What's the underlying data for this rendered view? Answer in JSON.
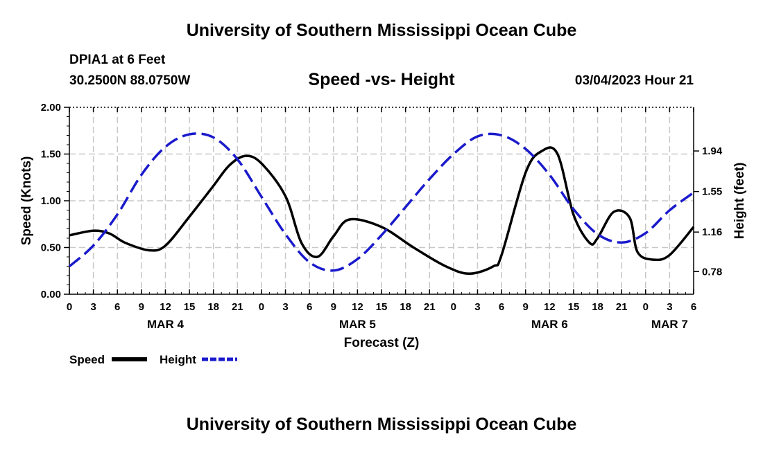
{
  "header": {
    "title": "University of Southern Mississippi Ocean Cube",
    "station": "DPIA1 at 6 Feet",
    "coords": "30.2500N  88.0750W",
    "subtitle": "Speed -vs- Height",
    "datetime": "03/04/2023 Hour 21"
  },
  "footer": {
    "title": "University of Southern Mississippi Ocean Cube"
  },
  "chart_data": {
    "type": "line",
    "title": "Speed -vs- Height",
    "xlabel": "Forecast (Z)",
    "ylabel": "Speed (Knots)",
    "y2label": "Height (feet)",
    "xlim": [
      0,
      78
    ],
    "ylim": [
      0,
      2.0
    ],
    "y2lim": [
      0.562,
      2.36
    ],
    "grid": true,
    "legend_position": "bottom-left",
    "x_tick_labels": [
      "0",
      "3",
      "6",
      "9",
      "12",
      "15",
      "18",
      "21",
      "0",
      "3",
      "6",
      "9",
      "12",
      "15",
      "18",
      "21",
      "0",
      "3",
      "6",
      "9",
      "12",
      "15",
      "18",
      "21",
      "0",
      "3",
      "6"
    ],
    "y_ticks": [
      0.0,
      0.5,
      1.0,
      1.5,
      2.0
    ],
    "y_tick_labels": [
      "0.00",
      "0.50",
      "1.00",
      "1.50",
      "2.00"
    ],
    "y2_ticks": [
      0.78,
      1.16,
      1.55,
      1.94
    ],
    "y2_tick_labels": [
      "0.78",
      "1.16",
      "1.55",
      "1.94"
    ],
    "day_labels": [
      {
        "x": 12,
        "label": "MAR 4"
      },
      {
        "x": 36,
        "label": "MAR 5"
      },
      {
        "x": 60,
        "label": "MAR 6"
      },
      {
        "x": 75,
        "label": "MAR 7"
      }
    ],
    "series": [
      {
        "name": "Speed",
        "axis": "left",
        "color": "#000000",
        "style": "solid",
        "x": [
          0,
          3,
          5,
          7,
          10,
          12,
          15,
          18,
          20,
          22,
          24,
          27,
          29,
          31,
          33,
          35,
          39,
          43,
          47,
          50,
          53,
          54,
          57,
          59,
          61,
          63,
          65,
          66,
          68,
          70,
          71,
          73,
          75,
          78
        ],
        "values": [
          0.63,
          0.68,
          0.65,
          0.55,
          0.47,
          0.52,
          0.83,
          1.16,
          1.38,
          1.48,
          1.4,
          1.05,
          0.55,
          0.4,
          0.62,
          0.8,
          0.72,
          0.5,
          0.3,
          0.22,
          0.3,
          0.42,
          1.3,
          1.53,
          1.5,
          0.85,
          0.55,
          0.6,
          0.88,
          0.82,
          0.45,
          0.37,
          0.42,
          0.72
        ]
      },
      {
        "name": "Height",
        "axis": "right",
        "color": "#1a1acc",
        "style": "dashed",
        "x": [
          0,
          3,
          6,
          9,
          12,
          15,
          18,
          21,
          24,
          27,
          30,
          33,
          36,
          39,
          42,
          45,
          48,
          51,
          54,
          57,
          60,
          63,
          66,
          69,
          72,
          75,
          78
        ],
        "values": [
          0.83,
          1.03,
          1.33,
          1.71,
          1.98,
          2.1,
          2.07,
          1.86,
          1.5,
          1.14,
          0.87,
          0.79,
          0.9,
          1.13,
          1.4,
          1.67,
          1.91,
          2.08,
          2.09,
          1.96,
          1.71,
          1.38,
          1.14,
          1.06,
          1.15,
          1.37,
          1.54
        ]
      }
    ]
  }
}
